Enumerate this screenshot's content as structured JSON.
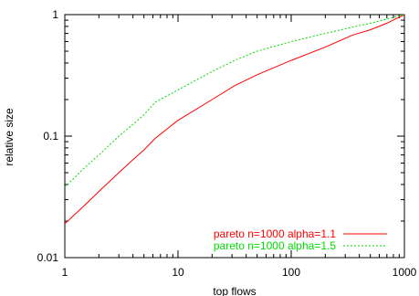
{
  "chart_data": {
    "type": "line",
    "title": "",
    "xlabel": "top flows",
    "ylabel": "relative size",
    "xscale": "log",
    "yscale": "log",
    "xlim": [
      1,
      1000
    ],
    "ylim": [
      0.01,
      1
    ],
    "grid": false,
    "legend_position": "bottom-right",
    "x_ticks": [
      {
        "value": 1,
        "label": "1"
      },
      {
        "value": 10,
        "label": "10"
      },
      {
        "value": 100,
        "label": "100"
      },
      {
        "value": 1000,
        "label": "1000"
      }
    ],
    "y_ticks": [
      {
        "value": 0.01,
        "label": "0.01"
      },
      {
        "value": 0.1,
        "label": "0.1"
      },
      {
        "value": 1,
        "label": "1"
      }
    ],
    "series": [
      {
        "name": "pareto n=1000 alpha=1.1",
        "color": "#ff0000",
        "dash": "solid",
        "x": [
          1,
          1.5,
          2,
          3,
          4,
          5,
          6.3,
          10,
          20,
          31.6,
          50,
          100,
          200,
          350,
          500,
          700,
          1000
        ],
        "y": [
          0.019,
          0.027,
          0.035,
          0.05,
          0.064,
          0.077,
          0.096,
          0.135,
          0.2,
          0.26,
          0.32,
          0.42,
          0.54,
          0.68,
          0.75,
          0.85,
          1.0
        ]
      },
      {
        "name": "pareto n=1000 alpha=1.5",
        "color": "#00dd00",
        "dash": "dashed",
        "x": [
          1,
          1.5,
          2,
          3,
          4,
          5,
          6.3,
          10,
          20,
          31.6,
          50,
          100,
          200,
          350,
          500,
          700,
          1000
        ],
        "y": [
          0.038,
          0.055,
          0.07,
          0.1,
          0.125,
          0.15,
          0.19,
          0.24,
          0.34,
          0.42,
          0.5,
          0.6,
          0.7,
          0.79,
          0.85,
          0.92,
          1.0
        ]
      }
    ]
  }
}
